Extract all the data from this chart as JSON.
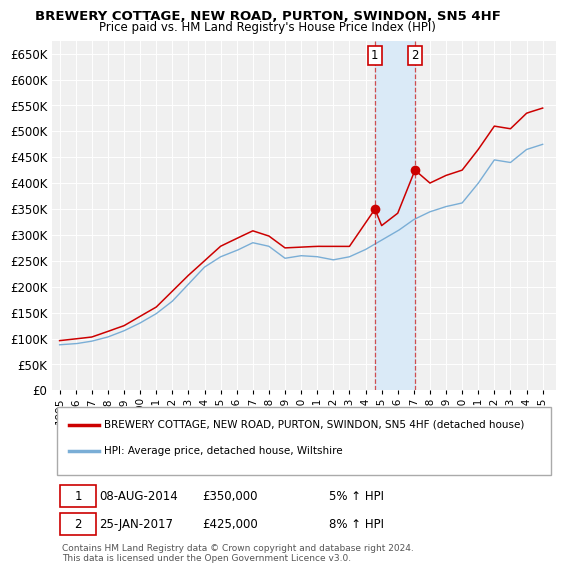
{
  "title": "BREWERY COTTAGE, NEW ROAD, PURTON, SWINDON, SN5 4HF",
  "subtitle": "Price paid vs. HM Land Registry's House Price Index (HPI)",
  "sale1_date": "08-AUG-2014",
  "sale1_price": 350000,
  "sale1_pct": "5%",
  "sale2_date": "25-JAN-2017",
  "sale2_price": 425000,
  "sale2_pct": "8%",
  "legend_label1": "BREWERY COTTAGE, NEW ROAD, PURTON, SWINDON, SN5 4HF (detached house)",
  "legend_label2": "HPI: Average price, detached house, Wiltshire",
  "line1_color": "#cc0000",
  "line2_color": "#7aaed6",
  "sale1_x": 2014.58,
  "sale2_x": 2017.07,
  "highlight_fill": "#daeaf7",
  "background_color": "#f0f0f0",
  "grid_color": "#ffffff",
  "footnote": "Contains HM Land Registry data © Crown copyright and database right 2024.\nThis data is licensed under the Open Government Licence v3.0.",
  "yticks": [
    0,
    50000,
    100000,
    150000,
    200000,
    250000,
    300000,
    350000,
    400000,
    450000,
    500000,
    550000,
    600000,
    650000
  ],
  "ytick_labels": [
    "£0",
    "£50K",
    "£100K",
    "£150K",
    "£200K",
    "£250K",
    "£300K",
    "£350K",
    "£400K",
    "£450K",
    "£500K",
    "£550K",
    "£600K",
    "£650K"
  ],
  "ylim": [
    0,
    675000
  ],
  "xlim": [
    1994.5,
    2025.8
  ]
}
